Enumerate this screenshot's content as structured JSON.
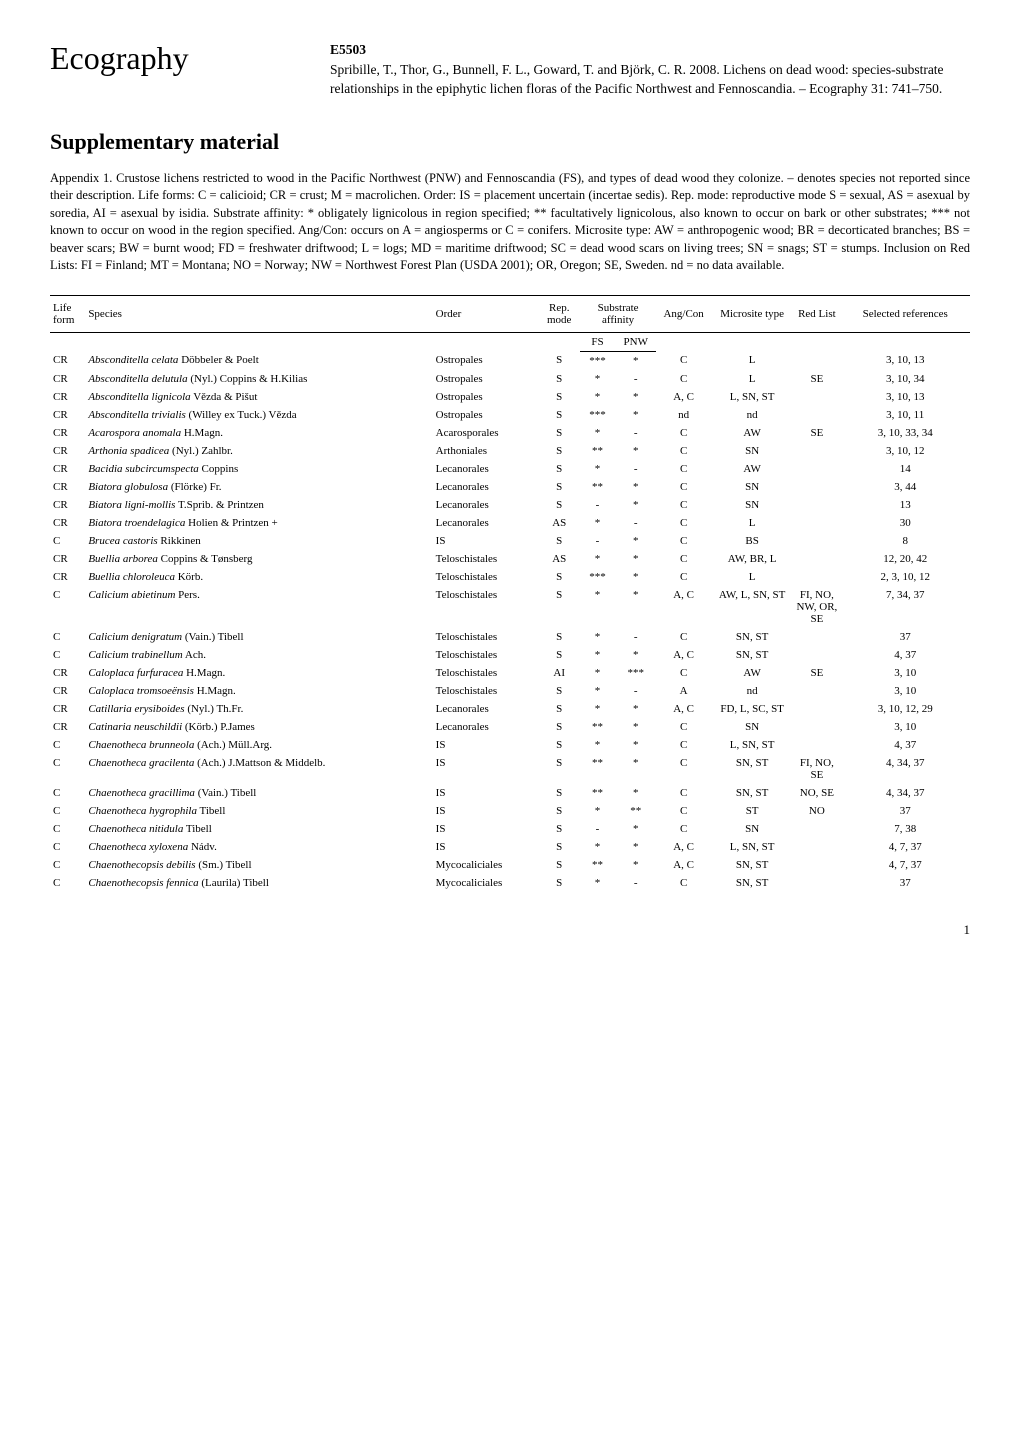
{
  "journal_name": "Ecography",
  "citation_code": "E5503",
  "citation_text": "Spribille, T., Thor, G., Bunnell, F. L., Goward, T. and Björk, C. R. 2008. Lichens on dead wood: species-substrate relationships in the epiphytic lichen floras of the Pacific Northwest and Fennoscandia. – Ecography 31: 741–750.",
  "supp_title": "Supplementary material",
  "appendix_intro": "Appendix 1. Crustose lichens restricted to wood in the Pacific Northwest (PNW) and Fennoscandia (FS), and types of dead wood they colonize. – denotes species not reported since their description. Life forms: C = calicioid; CR = crust; M = macrolichen. Order: IS = placement uncertain (incertae sedis). Rep. mode: reproductive mode S = sexual, AS = asexual by soredia, AI = asexual by isidia. Substrate affinity: * obligately lignicolous in region specified; ** facultatively lignicolous, also known to occur on bark or other substrates; *** not known to occur on wood in the region specified. Ang/Con: occurs on A = angiosperms or C = conifers. Microsite type: AW = anthropogenic wood; BR = decorticated branches; BS = beaver scars; BW = burnt wood; FD = freshwater driftwood; L = logs; MD = maritime driftwood; SC = dead wood scars on living trees; SN = snags; ST = stumps. Inclusion on Red Lists: FI = Finland; MT = Montana; NO = Norway; NW = Northwest Forest Plan (USDA 2001); OR, Oregon; SE, Sweden. nd = no data available.",
  "table": {
    "headers": {
      "life_form": "Life form",
      "species": "Species",
      "order": "Order",
      "rep_mode": "Rep. mode",
      "substrate": "Substrate affinity",
      "fs": "FS",
      "pnw": "PNW",
      "ang_con": "Ang/Con",
      "microsite": "Microsite type",
      "red_list": "Red List",
      "references": "Selected references"
    },
    "rows": [
      {
        "life": "CR",
        "species": "Absconditella celata",
        "author": "Döbbeler & Poelt",
        "order": "Ostropales",
        "rep": "S",
        "fs": "***",
        "pnw": "*",
        "ang": "C",
        "micro": "L",
        "red": "",
        "ref": "3, 10, 13"
      },
      {
        "life": "CR",
        "species": "Absconditella delutula",
        "author": "(Nyl.) Coppins & H.Kilias",
        "order": "Ostropales",
        "rep": "S",
        "fs": "*",
        "pnw": "-",
        "ang": "C",
        "micro": "L",
        "red": "SE",
        "ref": "3, 10, 34"
      },
      {
        "life": "CR",
        "species": "Absconditella lignicola",
        "author": "Vězda & Pišut",
        "order": "Ostropales",
        "rep": "S",
        "fs": "*",
        "pnw": "*",
        "ang": "A, C",
        "micro": "L, SN, ST",
        "red": "",
        "ref": "3, 10, 13"
      },
      {
        "life": "CR",
        "species": "Absconditella trivialis",
        "author": "(Willey ex Tuck.) Vězda",
        "order": "Ostropales",
        "rep": "S",
        "fs": "***",
        "pnw": "*",
        "ang": "nd",
        "micro": "nd",
        "red": "",
        "ref": "3, 10, 11"
      },
      {
        "life": "CR",
        "species": "Acarospora anomala",
        "author": "H.Magn.",
        "order": "Acarosporales",
        "rep": "S",
        "fs": "*",
        "pnw": "-",
        "ang": "C",
        "micro": "AW",
        "red": "SE",
        "ref": "3, 10, 33, 34"
      },
      {
        "life": "CR",
        "species": "Arthonia spadicea",
        "author": "(Nyl.) Zahlbr.",
        "order": "Arthoniales",
        "rep": "S",
        "fs": "**",
        "pnw": "*",
        "ang": "C",
        "micro": "SN",
        "red": "",
        "ref": "3, 10, 12"
      },
      {
        "life": "CR",
        "species": "Bacidia subcircumspecta",
        "author": "Coppins",
        "order": "Lecanorales",
        "rep": "S",
        "fs": "*",
        "pnw": "-",
        "ang": "C",
        "micro": "AW",
        "red": "",
        "ref": "14"
      },
      {
        "life": "CR",
        "species": "Biatora globulosa",
        "author": "(Flörke) Fr.",
        "order": "Lecanorales",
        "rep": "S",
        "fs": "**",
        "pnw": "*",
        "ang": "C",
        "micro": "SN",
        "red": "",
        "ref": "3, 44"
      },
      {
        "life": "CR",
        "species": "Biatora ligni-mollis",
        "author": "T.Sprib. & Printzen",
        "order": "Lecanorales",
        "rep": "S",
        "fs": "-",
        "pnw": "*",
        "ang": "C",
        "micro": "SN",
        "red": "",
        "ref": "13"
      },
      {
        "life": "CR",
        "species": "Biatora troendelagica",
        "author": "Holien & Printzen +",
        "order": "Lecanorales",
        "rep": "AS",
        "fs": "*",
        "pnw": "-",
        "ang": "C",
        "micro": "L",
        "red": "",
        "ref": "30"
      },
      {
        "life": "C",
        "species": "Brucea castoris",
        "author": "Rikkinen",
        "order": "IS",
        "rep": "S",
        "fs": "-",
        "pnw": "*",
        "ang": "C",
        "micro": "BS",
        "red": "",
        "ref": "8"
      },
      {
        "life": "CR",
        "species": "Buellia arborea",
        "author": "Coppins & Tønsberg",
        "order": "Teloschistales",
        "rep": "AS",
        "fs": "*",
        "pnw": "*",
        "ang": "C",
        "micro": "AW, BR, L",
        "red": "",
        "ref": "12, 20, 42"
      },
      {
        "life": "CR",
        "species": "Buellia chloroleuca",
        "author": "Körb.",
        "order": "Teloschistales",
        "rep": "S",
        "fs": "***",
        "pnw": "*",
        "ang": "C",
        "micro": "L",
        "red": "",
        "ref": "2, 3, 10, 12"
      },
      {
        "life": "C",
        "species": "Calicium abietinum",
        "author": "Pers.",
        "order": "Teloschistales",
        "rep": "S",
        "fs": "*",
        "pnw": "*",
        "ang": "A, C",
        "micro": "AW, L, SN, ST",
        "red": "FI, NO, NW, OR, SE",
        "ref": "7, 34, 37"
      },
      {
        "life": "C",
        "species": "Calicium denigratum",
        "author": "(Vain.) Tibell",
        "order": "Teloschistales",
        "rep": "S",
        "fs": "*",
        "pnw": "-",
        "ang": "C",
        "micro": "SN, ST",
        "red": "",
        "ref": "37"
      },
      {
        "life": "C",
        "species": "Calicium trabinellum",
        "author": "Ach.",
        "order": "Teloschistales",
        "rep": "S",
        "fs": "*",
        "pnw": "*",
        "ang": "A, C",
        "micro": "SN, ST",
        "red": "",
        "ref": "4, 37"
      },
      {
        "life": "CR",
        "species": "Caloplaca furfuracea",
        "author": "H.Magn.",
        "order": "Teloschistales",
        "rep": "AI",
        "fs": "*",
        "pnw": "***",
        "ang": "C",
        "micro": "AW",
        "red": "SE",
        "ref": "3, 10"
      },
      {
        "life": "CR",
        "species": "Caloplaca tromsoeënsis",
        "author": "H.Magn.",
        "order": "Teloschistales",
        "rep": "S",
        "fs": "*",
        "pnw": "-",
        "ang": "A",
        "micro": "nd",
        "red": "",
        "ref": "3, 10"
      },
      {
        "life": "CR",
        "species": "Catillaria erysiboides",
        "author": "(Nyl.) Th.Fr.",
        "order": "Lecanorales",
        "rep": "S",
        "fs": "*",
        "pnw": "*",
        "ang": "A, C",
        "micro": "FD, L, SC, ST",
        "red": "",
        "ref": "3, 10, 12, 29"
      },
      {
        "life": "CR",
        "species": "Catinaria neuschildii",
        "author": "(Körb.) P.James",
        "order": "Lecanorales",
        "rep": "S",
        "fs": "**",
        "pnw": "*",
        "ang": "C",
        "micro": "SN",
        "red": "",
        "ref": "3, 10"
      },
      {
        "life": "C",
        "species": "Chaenotheca brunneola",
        "author": "(Ach.) Müll.Arg.",
        "order": "IS",
        "rep": "S",
        "fs": "*",
        "pnw": "*",
        "ang": "C",
        "micro": "L, SN, ST",
        "red": "",
        "ref": "4, 37"
      },
      {
        "life": "C",
        "species": "Chaenotheca gracilenta",
        "author": "(Ach.) J.Mattson & Middelb.",
        "order": "IS",
        "rep": "S",
        "fs": "**",
        "pnw": "*",
        "ang": "C",
        "micro": "SN, ST",
        "red": "FI, NO, SE",
        "ref": "4, 34, 37"
      },
      {
        "life": "C",
        "species": "Chaenotheca gracillima",
        "author": "(Vain.) Tibell",
        "order": "IS",
        "rep": "S",
        "fs": "**",
        "pnw": "*",
        "ang": "C",
        "micro": "SN, ST",
        "red": "NO, SE",
        "ref": "4, 34, 37"
      },
      {
        "life": "C",
        "species": "Chaenotheca hygrophila",
        "author": "Tibell",
        "order": "IS",
        "rep": "S",
        "fs": "*",
        "pnw": "**",
        "ang": "C",
        "micro": "ST",
        "red": "NO",
        "ref": "37"
      },
      {
        "life": "C",
        "species": "Chaenotheca nitidula",
        "author": "Tibell",
        "order": "IS",
        "rep": "S",
        "fs": "-",
        "pnw": "*",
        "ang": "C",
        "micro": "SN",
        "red": "",
        "ref": "7, 38"
      },
      {
        "life": "C",
        "species": "Chaenotheca xyloxena",
        "author": "Nádv.",
        "order": "IS",
        "rep": "S",
        "fs": "*",
        "pnw": "*",
        "ang": "A, C",
        "micro": "L, SN, ST",
        "red": "",
        "ref": "4, 7, 37"
      },
      {
        "life": "C",
        "species": "Chaenothecopsis debilis",
        "author": "(Sm.) Tibell",
        "order": "Mycocaliciales",
        "rep": "S",
        "fs": "**",
        "pnw": "*",
        "ang": "A, C",
        "micro": "SN, ST",
        "red": "",
        "ref": "4, 7, 37"
      },
      {
        "life": "C",
        "species": "Chaenothecopsis fennica",
        "author": "(Laurila) Tibell",
        "order": "Mycocaliciales",
        "rep": "S",
        "fs": "*",
        "pnw": "-",
        "ang": "C",
        "micro": "SN, ST",
        "red": "",
        "ref": "37"
      }
    ]
  },
  "page_number": "1"
}
